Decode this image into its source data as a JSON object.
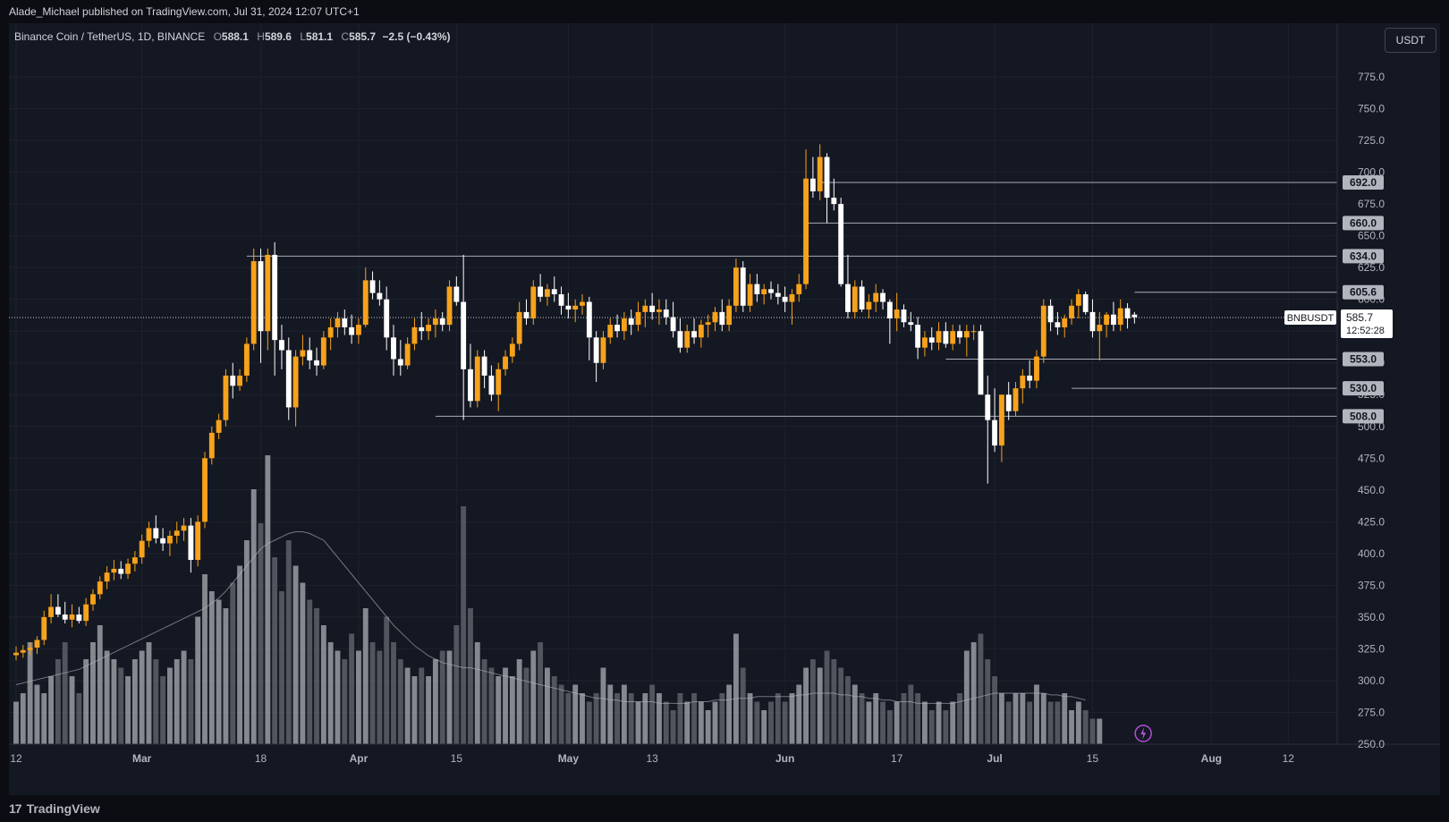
{
  "publisher_line": "Alade_Michael published on TradingView.com, Jul 31, 2024 12:07 UTC+1",
  "legend": {
    "symbol": "Binance Coin / TetherUS, 1D, BINANCE",
    "o_label": "O",
    "o_value": "588.1",
    "h_label": "H",
    "h_value": "589.6",
    "l_label": "L",
    "l_value": "581.1",
    "c_label": "C",
    "c_value": "585.7",
    "change": "−2.5 (−0.43%)"
  },
  "currency_button": "USDT",
  "footer": {
    "logo": "17",
    "brand": "TradingView"
  },
  "colors": {
    "up": "#f7a21b",
    "down": "#ffffff",
    "background": "#141823",
    "grid": "#1e222d",
    "axis_text": "#b2b5be",
    "volume": "#8c8f97",
    "volume_ma": "#b2b5be",
    "level_line": "#a8abb3"
  },
  "chart_data": {
    "type": "candlestick",
    "title": "Binance Coin / TetherUS, 1D, BINANCE",
    "y_axis_ticks": [
      "250.0",
      "275.0",
      "300.0",
      "325.0",
      "350.0",
      "375.0",
      "400.0",
      "425.0",
      "450.0",
      "475.0",
      "500.0",
      "525.0",
      "550.0",
      "575.0",
      "600.0",
      "625.0",
      "650.0",
      "675.0",
      "700.0",
      "725.0",
      "750.0",
      "775.0"
    ],
    "ylim": [
      250,
      775
    ],
    "x_axis_ticks": [
      {
        "label": "12",
        "date": "2024-02-12"
      },
      {
        "label": "Mar",
        "date": "2024-03-01"
      },
      {
        "label": "18",
        "date": "2024-03-18"
      },
      {
        "label": "Apr",
        "date": "2024-04-01"
      },
      {
        "label": "15",
        "date": "2024-04-15"
      },
      {
        "label": "May",
        "date": "2024-05-01"
      },
      {
        "label": "13",
        "date": "2024-05-13"
      },
      {
        "label": "Jun",
        "date": "2024-06-01"
      },
      {
        "label": "17",
        "date": "2024-06-17"
      },
      {
        "label": "Jul",
        "date": "2024-07-01"
      },
      {
        "label": "15",
        "date": "2024-07-15"
      },
      {
        "label": "Aug",
        "date": "2024-08-01"
      },
      {
        "label": "12",
        "date": "2024-08-12"
      }
    ],
    "x_range_dates": [
      "2024-02-12",
      "2024-08-19"
    ],
    "first_candle_date": "2024-02-12",
    "candles_ohlc": [
      [
        320,
        327,
        316,
        322
      ],
      [
        322,
        328,
        318,
        324
      ],
      [
        324,
        330,
        320,
        326
      ],
      [
        326,
        335,
        321,
        332
      ],
      [
        332,
        355,
        328,
        350
      ],
      [
        350,
        368,
        345,
        358
      ],
      [
        358,
        368,
        350,
        352
      ],
      [
        352,
        362,
        345,
        348
      ],
      [
        348,
        360,
        342,
        352
      ],
      [
        352,
        358,
        345,
        347
      ],
      [
        347,
        365,
        343,
        360
      ],
      [
        360,
        372,
        355,
        368
      ],
      [
        368,
        382,
        364,
        378
      ],
      [
        378,
        390,
        372,
        385
      ],
      [
        385,
        395,
        379,
        388
      ],
      [
        388,
        394,
        380,
        384
      ],
      [
        384,
        396,
        380,
        392
      ],
      [
        392,
        402,
        386,
        397
      ],
      [
        397,
        415,
        392,
        410
      ],
      [
        410,
        425,
        405,
        420
      ],
      [
        420,
        430,
        408,
        412
      ],
      [
        412,
        420,
        402,
        408
      ],
      [
        408,
        418,
        398,
        414
      ],
      [
        414,
        425,
        408,
        418
      ],
      [
        418,
        428,
        410,
        422
      ],
      [
        422,
        428,
        385,
        395
      ],
      [
        395,
        430,
        390,
        425
      ],
      [
        425,
        480,
        420,
        475
      ],
      [
        475,
        500,
        470,
        495
      ],
      [
        495,
        510,
        490,
        505
      ],
      [
        505,
        545,
        500,
        540
      ],
      [
        540,
        550,
        522,
        532
      ],
      [
        532,
        545,
        528,
        540
      ],
      [
        540,
        570,
        535,
        565
      ],
      [
        565,
        640,
        560,
        630
      ],
      [
        630,
        640,
        550,
        575
      ],
      [
        575,
        640,
        560,
        635
      ],
      [
        635,
        645,
        540,
        568
      ],
      [
        568,
        580,
        545,
        560
      ],
      [
        560,
        570,
        505,
        515
      ],
      [
        515,
        560,
        500,
        555
      ],
      [
        555,
        572,
        548,
        560
      ],
      [
        560,
        570,
        545,
        552
      ],
      [
        552,
        562,
        540,
        548
      ],
      [
        548,
        575,
        545,
        570
      ],
      [
        570,
        585,
        560,
        578
      ],
      [
        578,
        590,
        570,
        585
      ],
      [
        585,
        592,
        572,
        578
      ],
      [
        578,
        588,
        565,
        572
      ],
      [
        572,
        585,
        565,
        580
      ],
      [
        580,
        625,
        578,
        615
      ],
      [
        615,
        622,
        600,
        605
      ],
      [
        605,
        615,
        595,
        600
      ],
      [
        600,
        610,
        560,
        570
      ],
      [
        570,
        580,
        540,
        553
      ],
      [
        553,
        568,
        540,
        548
      ],
      [
        548,
        570,
        545,
        565
      ],
      [
        565,
        585,
        560,
        578
      ],
      [
        578,
        590,
        568,
        575
      ],
      [
        575,
        585,
        568,
        580
      ],
      [
        580,
        592,
        570,
        585
      ],
      [
        585,
        590,
        575,
        580
      ],
      [
        580,
        615,
        575,
        610
      ],
      [
        610,
        618,
        595,
        598
      ],
      [
        598,
        635,
        505,
        545
      ],
      [
        545,
        565,
        515,
        520
      ],
      [
        520,
        560,
        515,
        555
      ],
      [
        555,
        560,
        530,
        540
      ],
      [
        540,
        548,
        520,
        525
      ],
      [
        525,
        550,
        512,
        545
      ],
      [
        545,
        560,
        540,
        555
      ],
      [
        555,
        570,
        550,
        565
      ],
      [
        565,
        598,
        560,
        590
      ],
      [
        590,
        600,
        580,
        585
      ],
      [
        585,
        615,
        580,
        610
      ],
      [
        610,
        620,
        598,
        602
      ],
      [
        602,
        612,
        595,
        608
      ],
      [
        608,
        618,
        598,
        604
      ],
      [
        604,
        610,
        588,
        595
      ],
      [
        595,
        605,
        585,
        592
      ],
      [
        592,
        600,
        582,
        595
      ],
      [
        595,
        604,
        588,
        598
      ],
      [
        598,
        602,
        552,
        570
      ],
      [
        570,
        575,
        535,
        550
      ],
      [
        550,
        575,
        545,
        570
      ],
      [
        570,
        585,
        565,
        580
      ],
      [
        580,
        588,
        570,
        575
      ],
      [
        575,
        590,
        568,
        585
      ],
      [
        585,
        592,
        572,
        580
      ],
      [
        580,
        598,
        575,
        590
      ],
      [
        590,
        600,
        578,
        595
      ],
      [
        595,
        605,
        584,
        590
      ],
      [
        590,
        600,
        580,
        592
      ],
      [
        592,
        600,
        580,
        586
      ],
      [
        586,
        598,
        570,
        575
      ],
      [
        575,
        585,
        558,
        562
      ],
      [
        562,
        580,
        558,
        575
      ],
      [
        575,
        585,
        565,
        570
      ],
      [
        570,
        584,
        562,
        580
      ],
      [
        580,
        588,
        570,
        582
      ],
      [
        582,
        594,
        575,
        590
      ],
      [
        590,
        600,
        575,
        580
      ],
      [
        580,
        600,
        575,
        595
      ],
      [
        595,
        632,
        590,
        625
      ],
      [
        625,
        630,
        590,
        595
      ],
      [
        595,
        620,
        590,
        612
      ],
      [
        612,
        620,
        598,
        604
      ],
      [
        604,
        612,
        596,
        608
      ],
      [
        608,
        614,
        600,
        605
      ],
      [
        605,
        612,
        596,
        602
      ],
      [
        602,
        610,
        590,
        598
      ],
      [
        598,
        608,
        580,
        604
      ],
      [
        604,
        620,
        598,
        612
      ],
      [
        612,
        718,
        608,
        695
      ],
      [
        695,
        712,
        680,
        685
      ],
      [
        685,
        722,
        678,
        712
      ],
      [
        712,
        715,
        660,
        680
      ],
      [
        680,
        695,
        670,
        675
      ],
      [
        675,
        680,
        610,
        612
      ],
      [
        612,
        635,
        585,
        590
      ],
      [
        590,
        615,
        585,
        610
      ],
      [
        610,
        615,
        590,
        592
      ],
      [
        592,
        604,
        585,
        598
      ],
      [
        598,
        612,
        590,
        605
      ],
      [
        605,
        608,
        592,
        598
      ],
      [
        598,
        600,
        565,
        585
      ],
      [
        585,
        605,
        575,
        592
      ],
      [
        592,
        596,
        578,
        582
      ],
      [
        582,
        590,
        575,
        580
      ],
      [
        580,
        586,
        553,
        562
      ],
      [
        562,
        575,
        555,
        570
      ],
      [
        570,
        578,
        560,
        566
      ],
      [
        566,
        582,
        560,
        575
      ],
      [
        575,
        582,
        562,
        565
      ],
      [
        565,
        580,
        560,
        575
      ],
      [
        575,
        580,
        565,
        570
      ],
      [
        570,
        580,
        555,
        575
      ],
      [
        575,
        580,
        568,
        575
      ],
      [
        575,
        580,
        545,
        525
      ],
      [
        525,
        540,
        455,
        505
      ],
      [
        505,
        530,
        480,
        485
      ],
      [
        485,
        520,
        472,
        525
      ],
      [
        525,
        535,
        505,
        512
      ],
      [
        512,
        535,
        508,
        530
      ],
      [
        530,
        545,
        518,
        540
      ],
      [
        540,
        552,
        530,
        536
      ],
      [
        536,
        560,
        530,
        555
      ],
      [
        555,
        600,
        550,
        595
      ],
      [
        595,
        600,
        575,
        582
      ],
      [
        582,
        590,
        572,
        578
      ],
      [
        578,
        588,
        570,
        585
      ],
      [
        585,
        600,
        580,
        595
      ],
      [
        595,
        608,
        585,
        604
      ],
      [
        604,
        606,
        588,
        590
      ],
      [
        590,
        600,
        570,
        575
      ],
      [
        575,
        590,
        552,
        580
      ],
      [
        580,
        590,
        570,
        588
      ],
      [
        588,
        598,
        575,
        580
      ],
      [
        580,
        600,
        575,
        593
      ],
      [
        593,
        597,
        577,
        585
      ],
      [
        588,
        590,
        581,
        586
      ]
    ],
    "volume_relative": [
      0.25,
      0.3,
      0.6,
      0.35,
      0.3,
      0.4,
      0.5,
      0.6,
      0.4,
      0.3,
      0.5,
      0.6,
      0.7,
      0.55,
      0.5,
      0.45,
      0.4,
      0.5,
      0.55,
      0.6,
      0.5,
      0.4,
      0.45,
      0.5,
      0.55,
      0.5,
      0.75,
      1.0,
      0.9,
      0.85,
      0.8,
      0.95,
      1.05,
      1.2,
      1.5,
      1.3,
      1.7,
      1.1,
      0.9,
      1.2,
      1.05,
      0.95,
      0.85,
      0.8,
      0.7,
      0.6,
      0.55,
      0.5,
      0.65,
      0.55,
      0.8,
      0.6,
      0.55,
      0.75,
      0.6,
      0.5,
      0.45,
      0.4,
      0.45,
      0.4,
      0.5,
      0.55,
      0.55,
      0.7,
      1.4,
      0.8,
      0.6,
      0.5,
      0.45,
      0.4,
      0.45,
      0.4,
      0.5,
      0.45,
      0.55,
      0.6,
      0.45,
      0.4,
      0.35,
      0.3,
      0.35,
      0.3,
      0.25,
      0.3,
      0.45,
      0.35,
      0.3,
      0.35,
      0.3,
      0.25,
      0.3,
      0.35,
      0.3,
      0.25,
      0.2,
      0.3,
      0.25,
      0.3,
      0.25,
      0.2,
      0.25,
      0.3,
      0.35,
      0.65,
      0.45,
      0.3,
      0.25,
      0.2,
      0.25,
      0.3,
      0.25,
      0.3,
      0.35,
      0.45,
      0.5,
      0.45,
      0.55,
      0.5,
      0.45,
      0.4,
      0.35,
      0.3,
      0.25,
      0.3,
      0.25,
      0.2,
      0.25,
      0.3,
      0.35,
      0.3,
      0.25,
      0.2,
      0.25,
      0.2,
      0.25,
      0.3,
      0.55,
      0.6,
      0.65,
      0.5,
      0.4,
      0.3,
      0.25,
      0.3,
      0.3,
      0.25,
      0.35,
      0.3,
      0.25,
      0.25,
      0.3,
      0.2,
      0.25,
      0.2,
      0.15,
      0.15
    ],
    "volume_ma_relative": [
      0.35,
      0.36,
      0.37,
      0.38,
      0.39,
      0.4,
      0.41,
      0.42,
      0.43,
      0.44,
      0.46,
      0.48,
      0.5,
      0.52,
      0.54,
      0.56,
      0.58,
      0.6,
      0.62,
      0.64,
      0.66,
      0.68,
      0.7,
      0.72,
      0.74,
      0.76,
      0.78,
      0.8,
      0.83,
      0.86,
      0.9,
      0.95,
      1.0,
      1.05,
      1.1,
      1.15,
      1.18,
      1.2,
      1.22,
      1.24,
      1.25,
      1.25,
      1.24,
      1.22,
      1.2,
      1.15,
      1.1,
      1.05,
      1.0,
      0.95,
      0.9,
      0.85,
      0.8,
      0.75,
      0.7,
      0.66,
      0.62,
      0.58,
      0.55,
      0.52,
      0.5,
      0.48,
      0.47,
      0.46,
      0.45,
      0.45,
      0.44,
      0.43,
      0.42,
      0.41,
      0.4,
      0.39,
      0.38,
      0.37,
      0.36,
      0.35,
      0.34,
      0.33,
      0.32,
      0.31,
      0.3,
      0.29,
      0.28,
      0.27,
      0.27,
      0.26,
      0.26,
      0.25,
      0.25,
      0.25,
      0.25,
      0.25,
      0.24,
      0.24,
      0.24,
      0.24,
      0.24,
      0.25,
      0.25,
      0.25,
      0.26,
      0.26,
      0.26,
      0.27,
      0.27,
      0.27,
      0.28,
      0.28,
      0.28,
      0.28,
      0.28,
      0.28,
      0.29,
      0.29,
      0.3,
      0.3,
      0.3,
      0.3,
      0.29,
      0.29,
      0.28,
      0.28,
      0.27,
      0.27,
      0.26,
      0.26,
      0.25,
      0.25,
      0.25,
      0.24,
      0.24,
      0.24,
      0.24,
      0.24,
      0.24,
      0.25,
      0.26,
      0.27,
      0.28,
      0.29,
      0.3,
      0.3,
      0.3,
      0.3,
      0.3,
      0.3,
      0.3,
      0.3,
      0.29,
      0.29,
      0.28,
      0.28,
      0.27,
      0.26
    ],
    "horizontal_levels": [
      {
        "label": "692.0",
        "value": 692.0,
        "from_date": "2024-06-06"
      },
      {
        "label": "660.0",
        "value": 660.0,
        "from_date": "2024-06-04"
      },
      {
        "label": "634.0",
        "value": 634.0,
        "from_date": "2024-03-16"
      },
      {
        "label": "605.6",
        "value": 605.6,
        "from_date": "2024-07-21"
      },
      {
        "label": "553.0",
        "value": 553.0,
        "from_date": "2024-06-24"
      },
      {
        "label": "530.0",
        "value": 530.0,
        "from_date": "2024-07-12"
      },
      {
        "label": "508.0",
        "value": 508.0,
        "from_date": "2024-04-12"
      }
    ],
    "current_price": {
      "symbol": "BNBUSDT",
      "value": 585.7,
      "label": "585.7",
      "countdown": "12:52:28"
    },
    "grid": true
  }
}
